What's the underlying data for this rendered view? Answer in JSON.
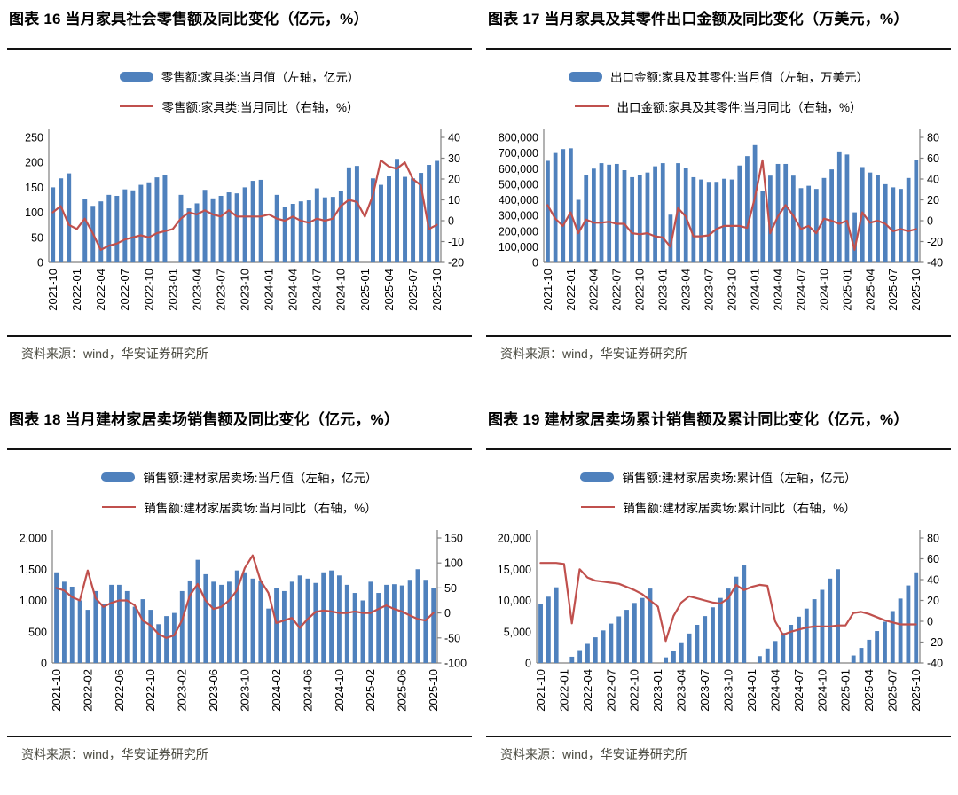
{
  "source_label": "资料来源：wind，华安证券研究所",
  "colors": {
    "bar": "#4F81BD",
    "line": "#C0504D",
    "axis": "#808080",
    "rule": "#121212",
    "source_text": "#4a4a40"
  },
  "months": [
    "2021-10",
    "2021-11",
    "2021-12",
    "2022-01",
    "2022-02",
    "2022-03",
    "2022-04",
    "2022-05",
    "2022-06",
    "2022-07",
    "2022-08",
    "2022-09",
    "2022-10",
    "2022-11",
    "2022-12",
    "2023-01",
    "2023-02",
    "2023-03",
    "2023-04",
    "2023-05",
    "2023-06",
    "2023-07",
    "2023-08",
    "2023-09",
    "2023-10",
    "2023-11",
    "2023-12",
    "2024-01",
    "2024-02",
    "2024-03",
    "2024-04",
    "2024-05",
    "2024-06",
    "2024-07",
    "2024-08",
    "2024-09",
    "2024-10",
    "2024-11",
    "2024-12",
    "2025-01",
    "2025-02",
    "2025-03",
    "2025-04",
    "2025-05",
    "2025-06",
    "2025-07",
    "2025-08",
    "2025-09",
    "2025-10"
  ],
  "chart_data": [
    {
      "id": "fig16",
      "type": "bar+line",
      "title": "图表 16 当月家具社会零售额及同比变化（亿元，%）",
      "categories_ref": "months",
      "x_tick_step": 3,
      "legend_position": "top-center",
      "grid": false,
      "bar_series": {
        "name": "零售额:家具类:当月值（左轴，亿元）",
        "axis": "left",
        "values": [
          150,
          168,
          178,
          null,
          127,
          113,
          122,
          135,
          133,
          146,
          144,
          155,
          160,
          170,
          175,
          null,
          135,
          108,
          118,
          145,
          128,
          133,
          140,
          138,
          150,
          163,
          165,
          null,
          135,
          110,
          117,
          122,
          124,
          148,
          130,
          131,
          143,
          190,
          193,
          null,
          168,
          155,
          172,
          207,
          171,
          168,
          179,
          195,
          203
        ]
      },
      "line_series": {
        "name": "零售额:家具类:当月同比（右轴，%）",
        "axis": "right",
        "values": [
          4,
          7,
          -2,
          -4,
          1,
          -6,
          -14,
          -12,
          -11,
          -9,
          -8,
          -7,
          -8,
          -6,
          -5,
          -4,
          1,
          4,
          3,
          5,
          3,
          2,
          5,
          2,
          2,
          2,
          2,
          3,
          1,
          0,
          2,
          0,
          -1,
          1,
          0,
          1,
          7,
          10,
          9,
          2,
          12,
          29,
          26,
          25,
          28,
          20,
          17,
          -4,
          -2
        ]
      },
      "left_axis": {
        "min": 0,
        "max": 250,
        "step": 50
      },
      "right_axis": {
        "min": -20,
        "max": 40,
        "step": 10
      },
      "layout": {
        "left_margin": 46,
        "right_margin": 34
      }
    },
    {
      "id": "fig17",
      "type": "bar+line",
      "title": "图表 17 当月家具及其零件出口金额及同比变化（万美元，%）",
      "categories_ref": "months",
      "x_tick_step": 3,
      "legend_position": "top-center",
      "grid": false,
      "bar_series": {
        "name": "出口金额:家具及其零件:当月值（左轴，万美元）",
        "axis": "left",
        "values": [
          650000,
          700000,
          725000,
          730000,
          400000,
          560000,
          600000,
          635000,
          625000,
          630000,
          590000,
          545000,
          560000,
          575000,
          615000,
          635000,
          305000,
          635000,
          605000,
          545000,
          530000,
          515000,
          515000,
          535000,
          530000,
          620000,
          680000,
          750000,
          455000,
          555000,
          630000,
          630000,
          555000,
          475000,
          490000,
          470000,
          540000,
          595000,
          710000,
          690000,
          320000,
          610000,
          575000,
          560000,
          500000,
          480000,
          470000,
          540000,
          655000
        ]
      },
      "line_series": {
        "name": "出口金额:家具及其零件:当月同比（右轴，%）",
        "axis": "right",
        "values": [
          15,
          2,
          -5,
          8,
          -12,
          1,
          -2,
          -2,
          -1,
          -3,
          -3,
          -12,
          -13,
          -12,
          -15,
          -16,
          -25,
          12,
          4,
          -15,
          -15,
          -14,
          -8,
          -5,
          -5,
          -5,
          -7,
          22,
          58,
          -12,
          4,
          15,
          5,
          -8,
          -5,
          -12,
          2,
          0,
          -3,
          0,
          -28,
          8,
          -2,
          0,
          -3,
          -10,
          -8,
          -10,
          -8
        ]
      },
      "left_axis": {
        "min": 0,
        "max": 800000,
        "step": 100000
      },
      "right_axis": {
        "min": -40,
        "max": 80,
        "step": 20
      },
      "layout": {
        "left_margin": 64,
        "right_margin": 34
      }
    },
    {
      "id": "fig18",
      "type": "bar+line",
      "title": "图表 18 当月建材家居卖场销售额及同比变化（亿元，%）",
      "categories_ref": "months",
      "x_tick_step": 4,
      "legend_position": "top-center",
      "grid": false,
      "bar_series": {
        "name": "销售额:建材家居卖场:当月值（左轴，亿元）",
        "axis": "left",
        "values": [
          1450,
          1300,
          1220,
          1000,
          850,
          1150,
          950,
          1250,
          1250,
          1150,
          900,
          1020,
          850,
          620,
          750,
          800,
          1150,
          1320,
          1650,
          1420,
          1300,
          1250,
          1300,
          1480,
          1450,
          1350,
          1320,
          870,
          1200,
          1150,
          1300,
          1400,
          1350,
          1280,
          1450,
          1480,
          1400,
          1250,
          1120,
          1000,
          1300,
          1120,
          1250,
          1260,
          1240,
          1330,
          1500,
          1330,
          1200
        ]
      },
      "line_series": {
        "name": "销售额:建材家居卖场:当月同比（右轴，%）",
        "axis": "right",
        "values": [
          50,
          45,
          32,
          25,
          85,
          30,
          12,
          20,
          25,
          25,
          15,
          -15,
          -25,
          -42,
          -50,
          -45,
          -15,
          35,
          58,
          25,
          8,
          12,
          25,
          45,
          90,
          115,
          65,
          40,
          -20,
          -15,
          -10,
          -30,
          -12,
          2,
          5,
          3,
          0,
          0,
          3,
          0,
          0,
          8,
          15,
          8,
          3,
          -5,
          -12,
          -15,
          0
        ]
      },
      "left_axis": {
        "min": 0,
        "max": 2000,
        "step": 500
      },
      "right_axis": {
        "min": -100,
        "max": 150,
        "step": 50
      },
      "layout": {
        "left_margin": 50,
        "right_margin": 38
      }
    },
    {
      "id": "fig19",
      "type": "bar+line",
      "title": "图表 19 建材家居卖场累计销售额及累计同比变化（亿元，%）",
      "categories_ref": "months",
      "x_tick_step": 3,
      "legend_position": "top-center",
      "grid": false,
      "bar_series": {
        "name": "销售额:建材家居卖场:累计值（左轴，亿元）",
        "axis": "left",
        "values": [
          9400,
          10600,
          12100,
          null,
          1000,
          2050,
          3050,
          4100,
          5200,
          6300,
          7450,
          8500,
          9600,
          10400,
          11900,
          null,
          900,
          1900,
          3300,
          4700,
          6100,
          7500,
          8900,
          10400,
          11900,
          13800,
          15600,
          null,
          1100,
          2300,
          3500,
          4800,
          6100,
          7400,
          8700,
          10200,
          11700,
          13500,
          15000,
          null,
          1200,
          2400,
          3700,
          5100,
          6600,
          8300,
          10300,
          12400,
          14500
        ]
      },
      "line_series": {
        "name": "销售额:建材家居卖场:累计同比（右轴，%）",
        "axis": "right",
        "values": [
          56,
          56,
          56,
          55,
          -2,
          50,
          42,
          39,
          38,
          37,
          36,
          33,
          30,
          26,
          20,
          14,
          -19,
          5,
          18,
          24,
          22,
          20,
          18,
          17,
          22,
          35,
          30,
          33,
          35,
          34,
          0,
          -13,
          -10,
          -8,
          -6,
          -5,
          -5,
          -5,
          -4,
          -4,
          8,
          9,
          7,
          4,
          1,
          -1,
          -3,
          -3,
          -3
        ]
      },
      "left_axis": {
        "min": 0,
        "max": 20000,
        "step": 5000
      },
      "right_axis": {
        "min": -40,
        "max": 80,
        "step": 20
      },
      "layout": {
        "left_margin": 56,
        "right_margin": 34
      }
    }
  ]
}
